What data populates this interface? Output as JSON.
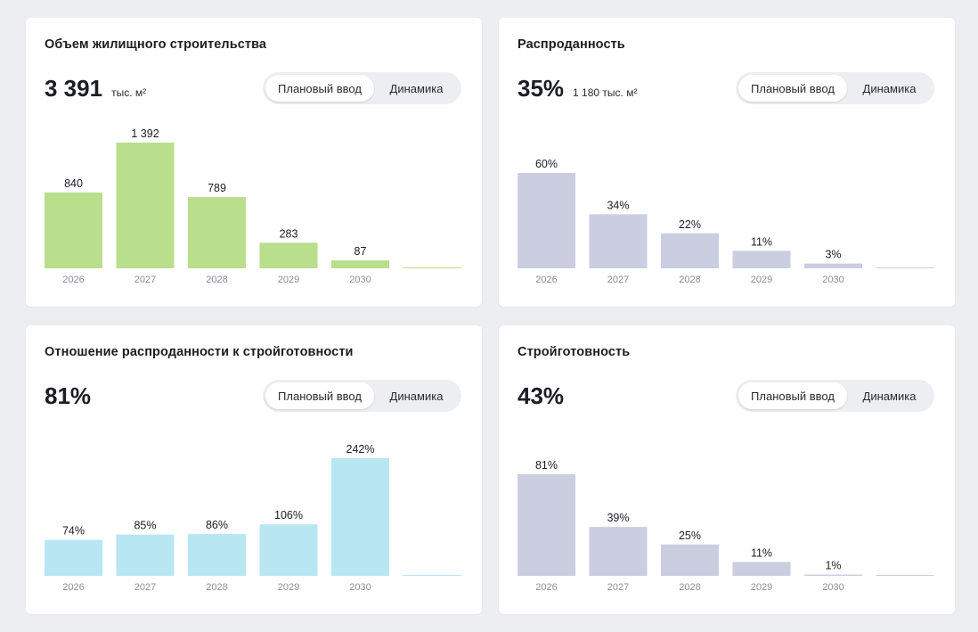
{
  "toggle": {
    "planned": "Плановый ввод",
    "dynamics": "Динамика"
  },
  "cards": {
    "volume": {
      "title": "Объем жилищного строительства",
      "kpi_value": "3 391",
      "kpi_unit": "тыс. м²",
      "chart_data": {
        "type": "bar",
        "categories": [
          "2026",
          "2027",
          "2028",
          "2029",
          "2030",
          ""
        ],
        "values": [
          840,
          1392,
          789,
          283,
          87,
          0
        ],
        "labels": [
          "840",
          "1 392",
          "789",
          "283",
          "87",
          ""
        ],
        "color": "#b9de8c",
        "ylim": [
          0,
          1392
        ]
      }
    },
    "sold": {
      "title": "Распроданность",
      "kpi_value": "35%",
      "kpi_unit": "1 180 тыс. м²",
      "chart_data": {
        "type": "bar",
        "categories": [
          "2026",
          "2027",
          "2028",
          "2029",
          "2030",
          ""
        ],
        "values": [
          60,
          34,
          22,
          11,
          3,
          0
        ],
        "labels": [
          "60%",
          "34%",
          "22%",
          "11%",
          "3%",
          ""
        ],
        "color": "#cbcde0",
        "ylim": [
          0,
          100
        ]
      }
    },
    "ratio": {
      "title": "Отношение распроданности к стройготовности",
      "kpi_value": "81%",
      "kpi_unit": "",
      "chart_data": {
        "type": "bar",
        "categories": [
          "2026",
          "2027",
          "2028",
          "2029",
          "2030",
          ""
        ],
        "values": [
          74,
          85,
          86,
          106,
          242,
          0
        ],
        "labels": [
          "74%",
          "85%",
          "86%",
          "106%",
          "242%",
          ""
        ],
        "color": "#b8e6f3",
        "ylim": [
          0,
          242
        ]
      }
    },
    "build": {
      "title": "Стройготовность",
      "kpi_value": "43%",
      "kpi_unit": "",
      "chart_data": {
        "type": "bar",
        "categories": [
          "2026",
          "2027",
          "2028",
          "2029",
          "2030",
          ""
        ],
        "values": [
          81,
          39,
          25,
          11,
          1,
          0
        ],
        "labels": [
          "81%",
          "39%",
          "25%",
          "11%",
          "1%",
          ""
        ],
        "color": "#cbcde0",
        "ylim": [
          0,
          100
        ]
      }
    }
  }
}
